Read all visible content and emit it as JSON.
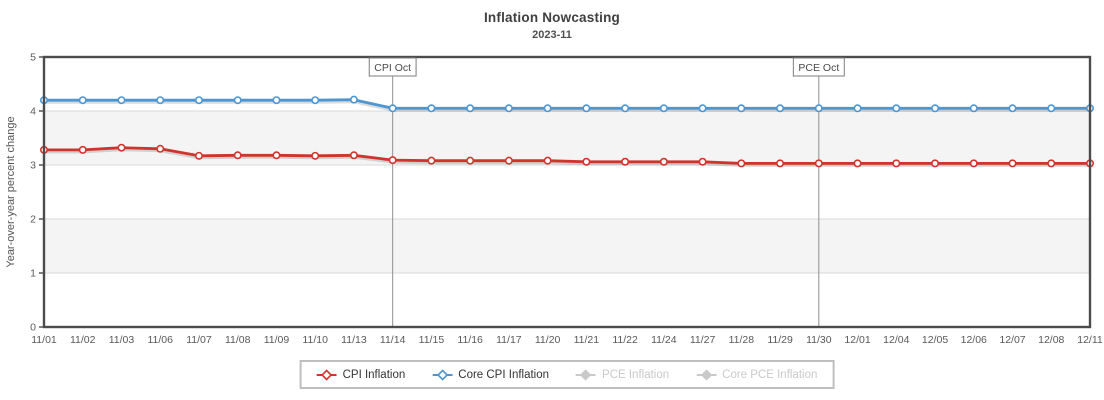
{
  "chart_data": {
    "type": "line",
    "title": "Inflation Nowcasting",
    "subtitle": "2023-11",
    "ylabel": "Year-over-year percent change",
    "ylim": [
      0,
      5
    ],
    "yticks": [
      0,
      1,
      2,
      3,
      4,
      5
    ],
    "grid": "horizontal-bands",
    "legend_position": "bottom-center",
    "categories": [
      "11/01",
      "11/02",
      "11/03",
      "11/06",
      "11/07",
      "11/08",
      "11/09",
      "11/10",
      "11/13",
      "11/14",
      "11/15",
      "11/16",
      "11/17",
      "11/20",
      "11/21",
      "11/22",
      "11/24",
      "11/27",
      "11/28",
      "11/29",
      "11/30",
      "12/01",
      "12/04",
      "12/05",
      "12/06",
      "12/07",
      "12/08",
      "12/11"
    ],
    "series": [
      {
        "name": "CPI Inflation",
        "color": "#d0342c",
        "visible": true,
        "values": [
          3.28,
          3.28,
          3.32,
          3.3,
          3.17,
          3.18,
          3.18,
          3.17,
          3.18,
          3.09,
          3.08,
          3.08,
          3.08,
          3.08,
          3.06,
          3.06,
          3.06,
          3.06,
          3.03,
          3.03,
          3.03,
          3.03,
          3.03,
          3.03,
          3.03,
          3.03,
          3.03,
          3.03
        ]
      },
      {
        "name": "Core CPI Inflation",
        "color": "#4e96d1",
        "visible": true,
        "values": [
          4.2,
          4.2,
          4.2,
          4.2,
          4.2,
          4.2,
          4.2,
          4.2,
          4.21,
          4.05,
          4.05,
          4.05,
          4.05,
          4.05,
          4.05,
          4.05,
          4.05,
          4.05,
          4.05,
          4.05,
          4.05,
          4.05,
          4.05,
          4.05,
          4.05,
          4.05,
          4.05,
          4.05
        ]
      },
      {
        "name": "PCE Inflation",
        "color": "#cccccc",
        "visible": false,
        "values": []
      },
      {
        "name": "Core PCE Inflation",
        "color": "#cccccc",
        "visible": false,
        "values": []
      }
    ],
    "annotations": [
      {
        "label": "CPI Oct",
        "category": "11/14"
      },
      {
        "label": "PCE Oct",
        "category": "11/30"
      }
    ],
    "colors": {
      "band_shade": "#f4f4f4",
      "gridline": "#d9d9d9",
      "plot_border": "#4c4c4c",
      "tick_label": "#595959",
      "annotation_line": "#8f8f8f",
      "annotation_border": "#7d7d7d",
      "annotation_text": "#4a4a4a",
      "disabled_legend": "#c9c9c9"
    }
  }
}
